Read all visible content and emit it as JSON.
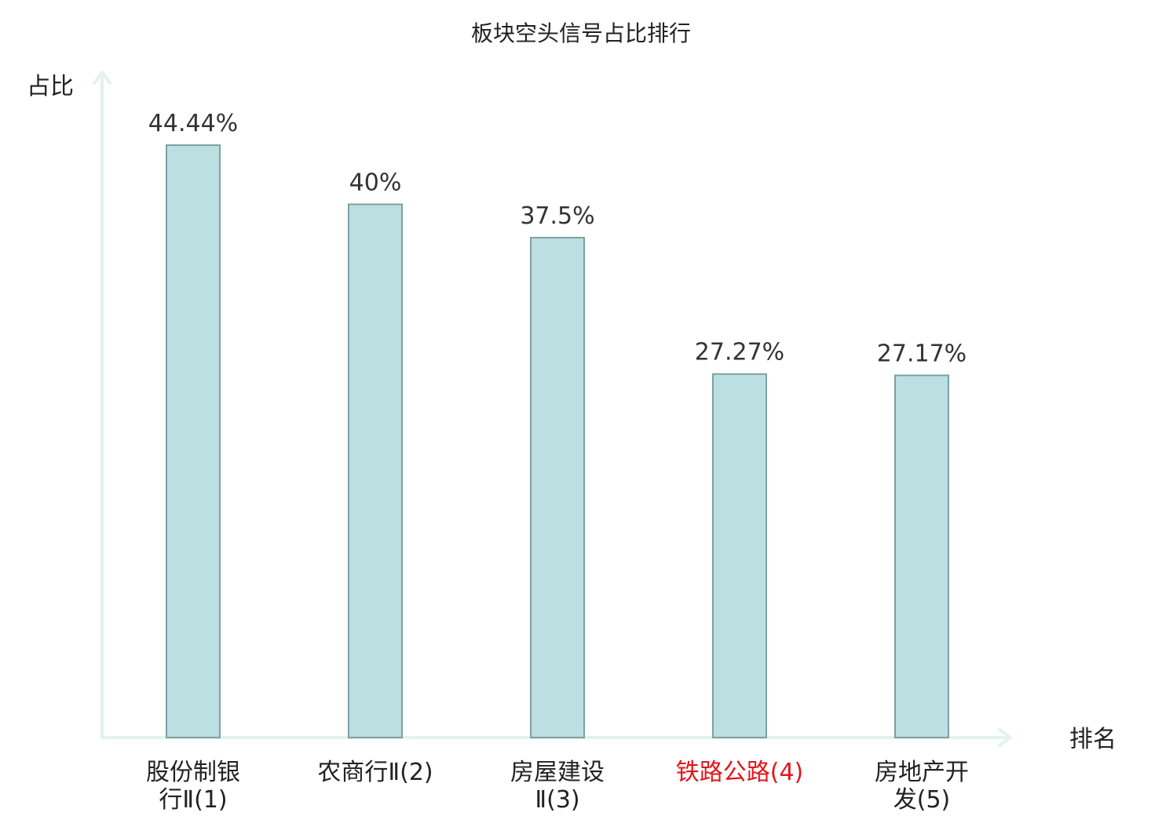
{
  "chart_data": {
    "type": "bar",
    "title": "板块空头信号占比排行",
    "ylabel": "占比",
    "xlabel": "排名",
    "categories": [
      [
        "股份制银",
        "行Ⅱ(1)"
      ],
      [
        "农商行Ⅱ(2)"
      ],
      [
        "房屋建设",
        "Ⅱ(3)"
      ],
      [
        "铁路公路(4)"
      ],
      [
        "房地产开",
        "发(5)"
      ]
    ],
    "values": [
      44.44,
      40,
      37.5,
      27.27,
      27.17
    ],
    "value_labels": [
      "44.44%",
      "40%",
      "37.5%",
      "27.27%",
      "27.17%"
    ],
    "highlight_index": 3,
    "ylim": [
      0,
      50
    ],
    "grid": false,
    "colors": {
      "bar_fill": "#bce0e1",
      "bar_stroke": "#7e9fa0",
      "axis": "#e2f2ef",
      "highlight": "#e3151a",
      "text": "#222222"
    }
  }
}
